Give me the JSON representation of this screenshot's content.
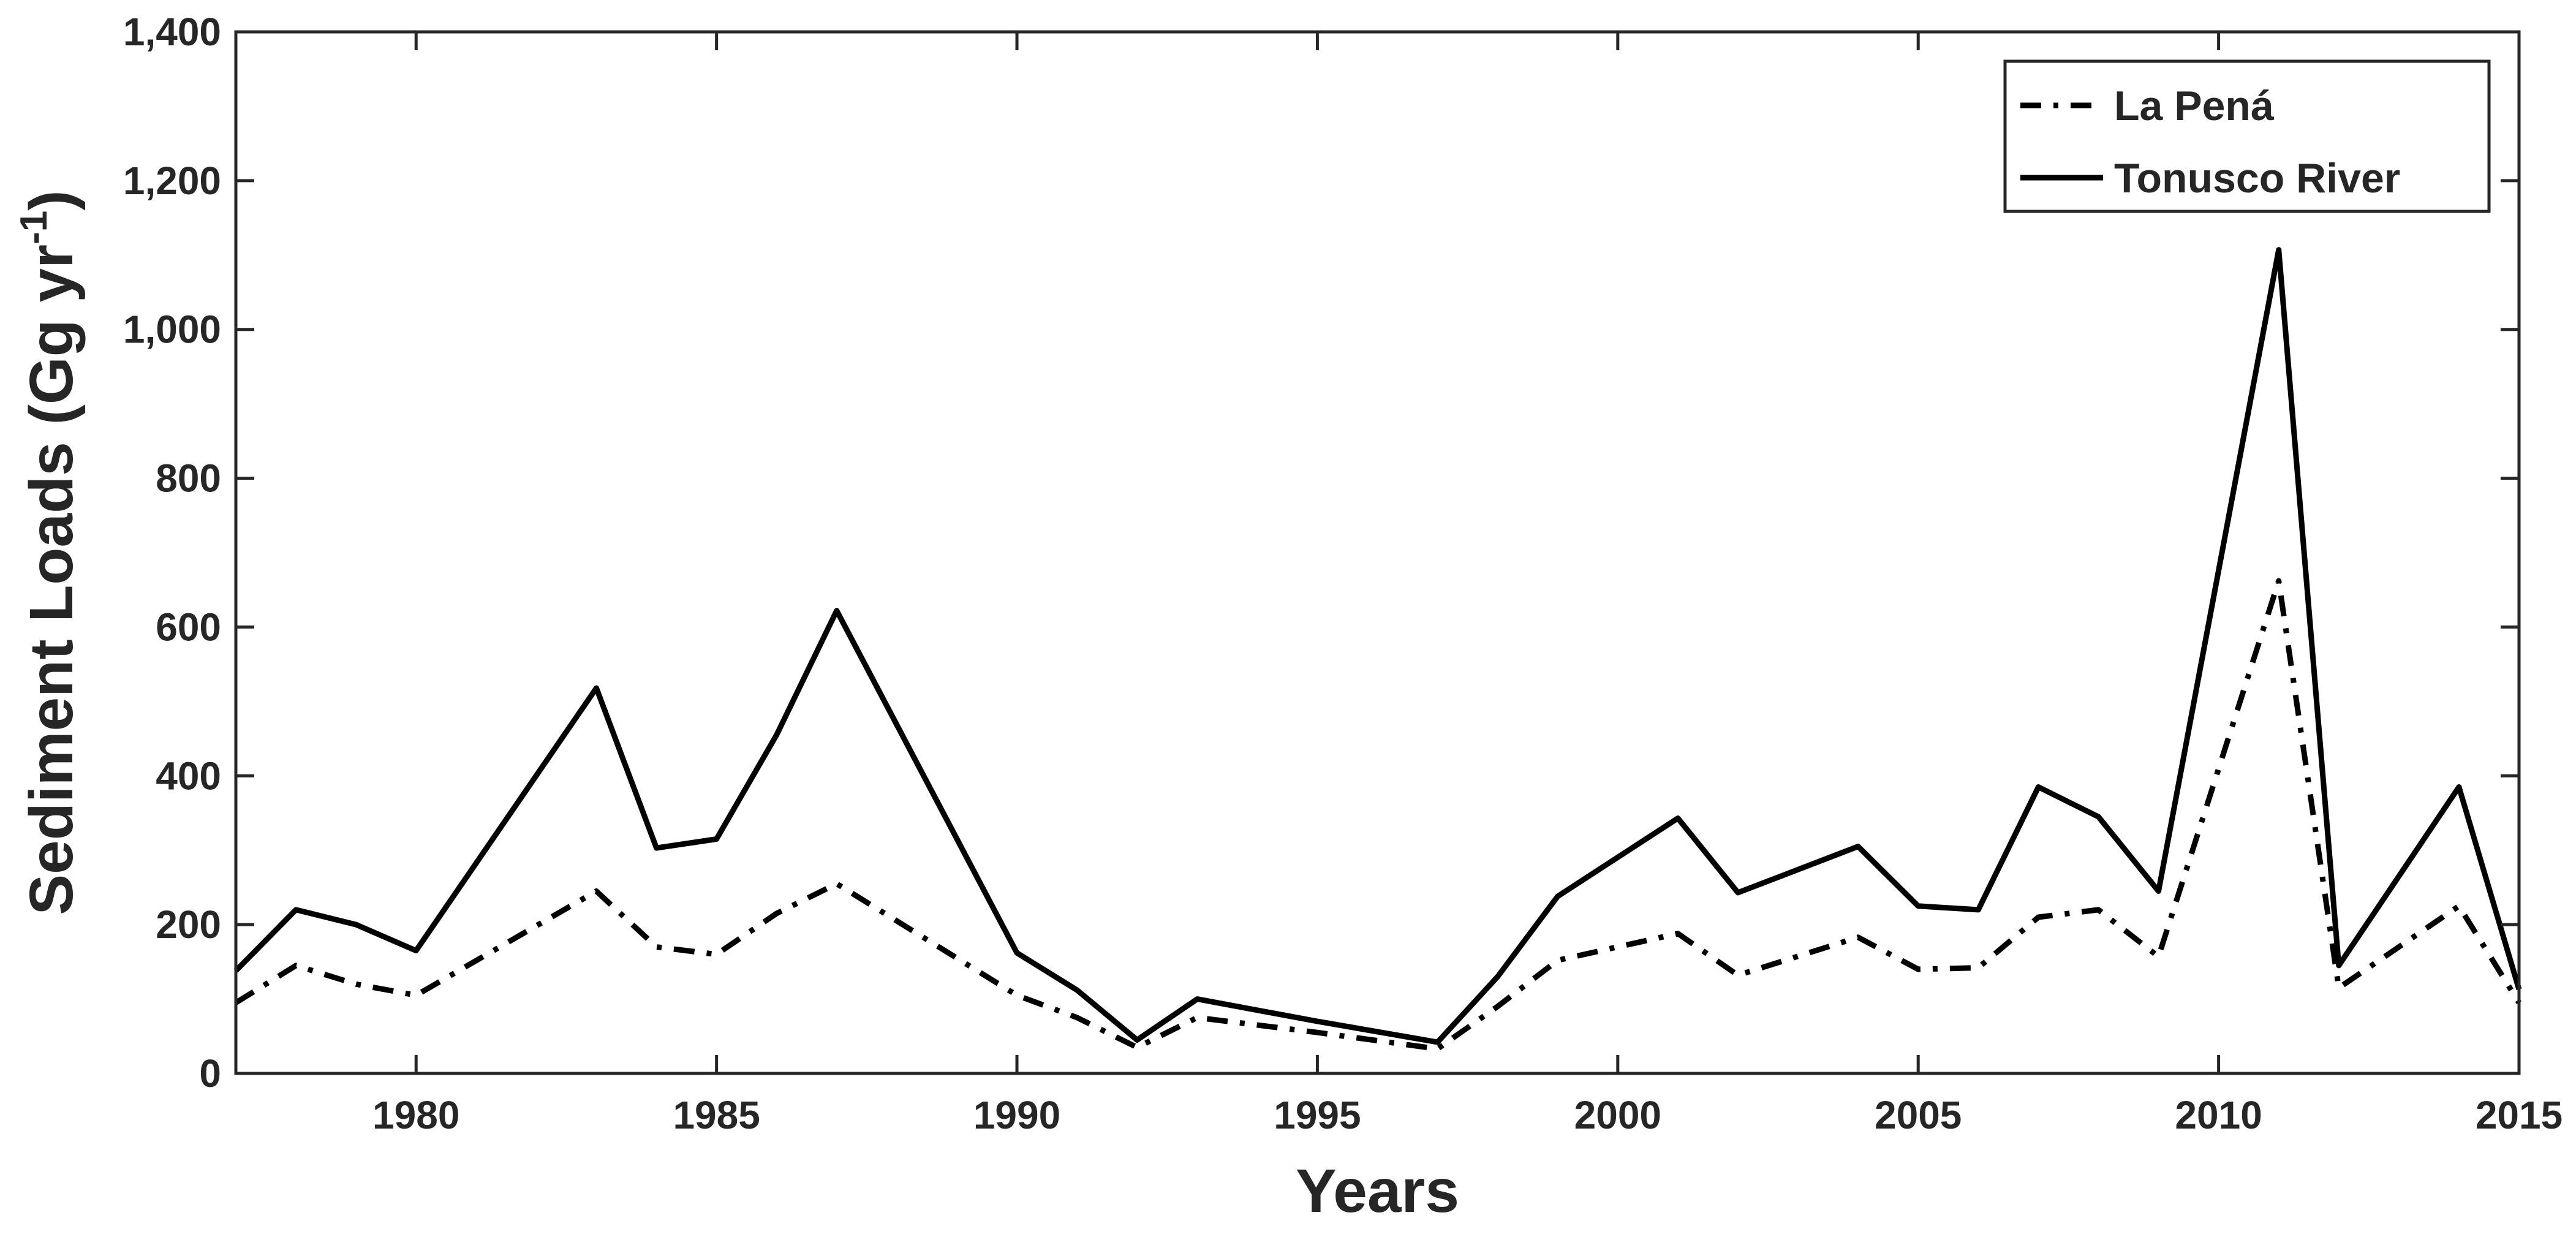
{
  "chart_data": {
    "type": "line",
    "title": "",
    "xlabel": "Years",
    "ylabel_main": "Sediment Loads (Gg yr",
    "ylabel_sup": "-1",
    "ylabel_close": ")",
    "xlim": [
      1977,
      2015
    ],
    "ylim": [
      0,
      1400
    ],
    "xticks": [
      1980,
      1985,
      1990,
      1995,
      2000,
      2005,
      2010,
      2015
    ],
    "xtick_labels": [
      "1980",
      "1985",
      "1990",
      "1995",
      "2000",
      "2005",
      "2010",
      "2015"
    ],
    "yticks": [
      0,
      200,
      400,
      600,
      800,
      1000,
      1200,
      1400
    ],
    "ytick_labels": [
      "0",
      "200",
      "400",
      "600",
      "800",
      "1,000",
      "1,200",
      "1,400"
    ],
    "grid": false,
    "legend_position": "top-right",
    "x": [
      1977,
      1978,
      1979,
      1980,
      1983,
      1984,
      1985,
      1986,
      1987,
      1990,
      1991,
      1992,
      1993,
      1995,
      1997,
      1998,
      1999,
      2001,
      2002,
      2004,
      2005,
      2006,
      2007,
      2008,
      2009,
      2011,
      2012,
      2014,
      2015
    ],
    "series": [
      {
        "name": "La Pená",
        "style": "dashdot",
        "color": "#000000",
        "values": [
          95,
          145,
          120,
          105,
          245,
          170,
          160,
          215,
          255,
          105,
          75,
          35,
          75,
          55,
          33,
          90,
          152,
          188,
          132,
          183,
          140,
          142,
          210,
          220,
          157,
          662,
          115,
          225,
          95
        ]
      },
      {
        "name": "Tonusco River",
        "style": "solid",
        "color": "#000000",
        "values": [
          138,
          220,
          200,
          165,
          518,
          303,
          315,
          455,
          622,
          162,
          112,
          45,
          100,
          70,
          42,
          130,
          238,
          343,
          243,
          305,
          225,
          220,
          385,
          345,
          245,
          1107,
          145,
          385,
          113
        ]
      }
    ]
  }
}
